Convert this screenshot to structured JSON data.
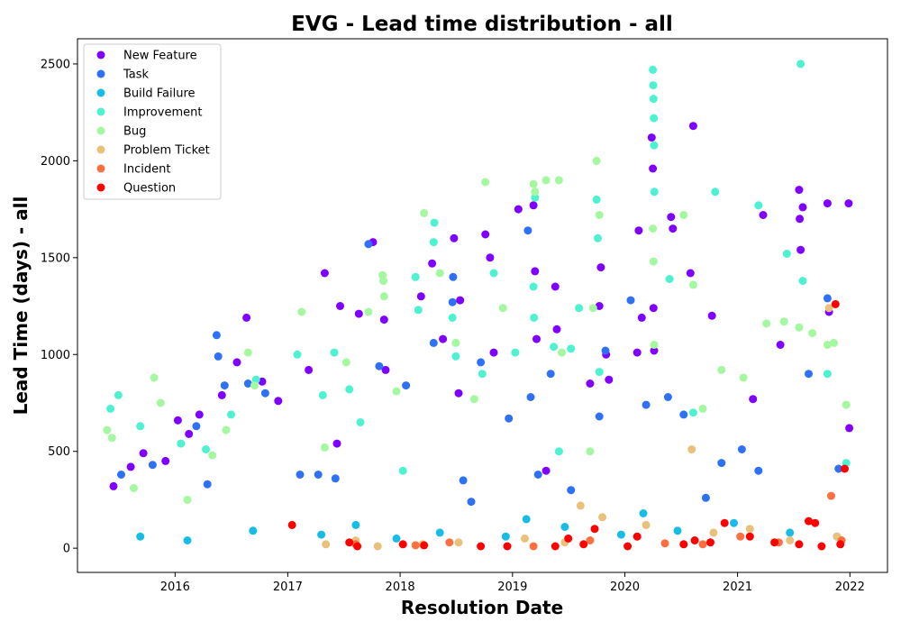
{
  "chart_data": {
    "type": "scatter",
    "title": "EVG - Lead time distribution - all",
    "xlabel": "Resolution Date",
    "ylabel": "Lead Time (days) - all",
    "xlim": [
      "2015-02-18",
      "2022-05-03"
    ],
    "ylim": [
      -125,
      2630
    ],
    "x_ticks": [
      "2016",
      "2017",
      "2018",
      "2019",
      "2020",
      "2021",
      "2022"
    ],
    "y_ticks": [
      0,
      500,
      1000,
      1500,
      2000,
      2500
    ],
    "grid": false,
    "legend_position": "upper-left",
    "series": [
      {
        "name": "New Feature",
        "color": "#8000ff",
        "points": [
          [
            "2015-06-15",
            320
          ],
          [
            "2015-08-10",
            420
          ],
          [
            "2015-09-20",
            490
          ],
          [
            "2015-12-01",
            450
          ],
          [
            "2016-01-10",
            660
          ],
          [
            "2016-02-15",
            590
          ],
          [
            "2016-03-20",
            690
          ],
          [
            "2016-06-01",
            790
          ],
          [
            "2016-07-20",
            960
          ],
          [
            "2016-08-20",
            1190
          ],
          [
            "2016-10-10",
            860
          ],
          [
            "2016-12-01",
            760
          ],
          [
            "2017-03-10",
            920
          ],
          [
            "2017-05-01",
            1420
          ],
          [
            "2017-06-20",
            1250
          ],
          [
            "2017-08-20",
            1210
          ],
          [
            "2017-10-05",
            1580
          ],
          [
            "2017-11-10",
            1180
          ],
          [
            "2017-11-15",
            920
          ],
          [
            "2018-03-10",
            1300
          ],
          [
            "2018-04-15",
            1470
          ],
          [
            "2018-05-20",
            1080
          ],
          [
            "2018-06-25",
            1600
          ],
          [
            "2018-07-15",
            1280
          ],
          [
            "2018-10-05",
            1620
          ],
          [
            "2018-10-20",
            1500
          ],
          [
            "2018-11-01",
            1010
          ],
          [
            "2019-01-20",
            1750
          ],
          [
            "2019-03-10",
            1770
          ],
          [
            "2019-03-15",
            1430
          ],
          [
            "2019-03-20",
            1080
          ],
          [
            "2019-05-20",
            1350
          ],
          [
            "2019-05-25",
            1130
          ],
          [
            "2019-09-10",
            850
          ],
          [
            "2019-10-10",
            1250
          ],
          [
            "2019-10-15",
            1450
          ],
          [
            "2019-11-01",
            1000
          ],
          [
            "2019-11-10",
            870
          ],
          [
            "2020-02-15",
            1640
          ],
          [
            "2020-02-25",
            1190
          ],
          [
            "2020-03-28",
            2120
          ],
          [
            "2020-04-01",
            1960
          ],
          [
            "2020-04-03",
            1240
          ],
          [
            "2020-04-05",
            1020
          ],
          [
            "2020-05-30",
            1710
          ],
          [
            "2020-06-05",
            1650
          ],
          [
            "2020-08-01",
            1420
          ],
          [
            "2020-08-10",
            2180
          ],
          [
            "2020-10-10",
            1200
          ],
          [
            "2021-02-20",
            770
          ],
          [
            "2021-03-25",
            1720
          ],
          [
            "2021-05-20",
            1050
          ],
          [
            "2021-07-20",
            1850
          ],
          [
            "2021-07-22",
            1700
          ],
          [
            "2021-07-25",
            1540
          ],
          [
            "2021-08-01",
            1760
          ],
          [
            "2021-10-20",
            1780
          ],
          [
            "2021-10-25",
            1220
          ],
          [
            "2021-12-28",
            1780
          ],
          [
            "2021-12-30",
            620
          ],
          [
            "2020-02-10",
            1010
          ],
          [
            "2018-07-10",
            800
          ],
          [
            "2019-04-20",
            400
          ],
          [
            "2017-06-10",
            540
          ]
        ]
      },
      {
        "name": "Task",
        "color": "#2f71f6",
        "points": [
          [
            "2015-07-10",
            380
          ],
          [
            "2015-10-20",
            430
          ],
          [
            "2016-03-10",
            630
          ],
          [
            "2016-04-15",
            330
          ],
          [
            "2016-05-15",
            1100
          ],
          [
            "2016-05-20",
            990
          ],
          [
            "2016-06-10",
            840
          ],
          [
            "2016-08-25",
            850
          ],
          [
            "2016-10-20",
            800
          ],
          [
            "2017-02-10",
            380
          ],
          [
            "2017-04-10",
            380
          ],
          [
            "2017-06-05",
            360
          ],
          [
            "2017-09-20",
            1570
          ],
          [
            "2017-10-25",
            940
          ],
          [
            "2018-01-20",
            840
          ],
          [
            "2018-04-20",
            1060
          ],
          [
            "2018-06-20",
            1270
          ],
          [
            "2018-06-22",
            1400
          ],
          [
            "2018-07-25",
            350
          ],
          [
            "2018-09-20",
            960
          ],
          [
            "2018-12-20",
            670
          ],
          [
            "2019-02-20",
            1640
          ],
          [
            "2019-03-01",
            780
          ],
          [
            "2019-03-25",
            380
          ],
          [
            "2019-05-05",
            900
          ],
          [
            "2019-10-10",
            680
          ],
          [
            "2019-10-30",
            1020
          ],
          [
            "2020-01-20",
            1280
          ],
          [
            "2020-03-10",
            740
          ],
          [
            "2020-05-20",
            780
          ],
          [
            "2020-07-10",
            690
          ],
          [
            "2020-11-10",
            440
          ],
          [
            "2021-01-15",
            510
          ],
          [
            "2021-03-10",
            400
          ],
          [
            "2021-08-20",
            900
          ],
          [
            "2021-10-20",
            1290
          ],
          [
            "2021-11-25",
            410
          ],
          [
            "2018-08-20",
            240
          ],
          [
            "2019-07-10",
            300
          ],
          [
            "2020-09-20",
            260
          ]
        ]
      },
      {
        "name": "Build Failure",
        "color": "#17bde6",
        "points": [
          [
            "2015-09-10",
            60
          ],
          [
            "2016-02-10",
            40
          ],
          [
            "2016-09-10",
            90
          ],
          [
            "2017-04-20",
            70
          ],
          [
            "2017-12-20",
            50
          ],
          [
            "2018-05-10",
            80
          ],
          [
            "2018-12-10",
            60
          ],
          [
            "2019-06-20",
            110
          ],
          [
            "2019-12-20",
            70
          ],
          [
            "2020-06-20",
            90
          ],
          [
            "2020-12-20",
            130
          ],
          [
            "2021-06-20",
            80
          ],
          [
            "2021-11-20",
            60
          ],
          [
            "2019-02-15",
            150
          ],
          [
            "2020-03-01",
            180
          ],
          [
            "2017-08-10",
            120
          ]
        ]
      },
      {
        "name": "Improvement",
        "color": "#4df2d0",
        "points": [
          [
            "2015-06-05",
            720
          ],
          [
            "2015-07-01",
            790
          ],
          [
            "2015-09-10",
            630
          ],
          [
            "2016-01-20",
            540
          ],
          [
            "2016-04-10",
            510
          ],
          [
            "2016-07-01",
            690
          ],
          [
            "2016-09-20",
            870
          ],
          [
            "2017-02-01",
            1000
          ],
          [
            "2017-04-25",
            790
          ],
          [
            "2017-06-01",
            1010
          ],
          [
            "2017-07-20",
            820
          ],
          [
            "2017-08-25",
            650
          ],
          [
            "2018-02-20",
            1400
          ],
          [
            "2018-03-01",
            1230
          ],
          [
            "2018-04-20",
            1580
          ],
          [
            "2018-04-22",
            1680
          ],
          [
            "2018-06-20",
            1190
          ],
          [
            "2018-07-01",
            990
          ],
          [
            "2018-09-25",
            900
          ],
          [
            "2018-11-01",
            1420
          ],
          [
            "2019-01-10",
            1010
          ],
          [
            "2019-03-10",
            1350
          ],
          [
            "2019-03-12",
            1190
          ],
          [
            "2019-03-15",
            1810
          ],
          [
            "2019-05-15",
            1040
          ],
          [
            "2019-07-10",
            1030
          ],
          [
            "2019-08-05",
            1240
          ],
          [
            "2019-10-01",
            1800
          ],
          [
            "2019-10-05",
            1600
          ],
          [
            "2019-10-10",
            910
          ],
          [
            "2020-04-01",
            2470
          ],
          [
            "2020-04-02",
            2390
          ],
          [
            "2020-04-03",
            2320
          ],
          [
            "2020-04-04",
            2220
          ],
          [
            "2020-04-05",
            2080
          ],
          [
            "2020-04-06",
            1840
          ],
          [
            "2020-05-25",
            1390
          ],
          [
            "2020-10-20",
            1840
          ],
          [
            "2021-03-10",
            1770
          ],
          [
            "2021-06-10",
            1520
          ],
          [
            "2021-07-25",
            2500
          ],
          [
            "2021-08-01",
            1380
          ],
          [
            "2021-10-20",
            900
          ],
          [
            "2021-12-20",
            440
          ],
          [
            "2020-08-10",
            700
          ],
          [
            "2019-06-01",
            500
          ],
          [
            "2018-01-10",
            400
          ]
        ]
      },
      {
        "name": "Bug",
        "color": "#a4f89f",
        "points": [
          [
            "2015-05-25",
            610
          ],
          [
            "2015-06-10",
            570
          ],
          [
            "2015-10-25",
            880
          ],
          [
            "2015-11-15",
            750
          ],
          [
            "2016-05-01",
            480
          ],
          [
            "2016-06-15",
            610
          ],
          [
            "2016-08-25",
            1010
          ],
          [
            "2016-09-15",
            840
          ],
          [
            "2017-02-15",
            1220
          ],
          [
            "2017-05-01",
            520
          ],
          [
            "2017-07-10",
            960
          ],
          [
            "2017-09-20",
            1220
          ],
          [
            "2017-11-05",
            1410
          ],
          [
            "2017-11-08",
            1380
          ],
          [
            "2017-11-10",
            1300
          ],
          [
            "2017-12-20",
            810
          ],
          [
            "2018-03-20",
            1730
          ],
          [
            "2018-05-10",
            1420
          ],
          [
            "2018-07-01",
            1060
          ],
          [
            "2018-08-30",
            770
          ],
          [
            "2018-10-05",
            1890
          ],
          [
            "2018-12-01",
            1240
          ],
          [
            "2019-03-10",
            1880
          ],
          [
            "2019-03-15",
            1840
          ],
          [
            "2019-04-20",
            1900
          ],
          [
            "2019-06-01",
            1900
          ],
          [
            "2019-06-10",
            1010
          ],
          [
            "2019-09-20",
            1240
          ],
          [
            "2019-10-01",
            2000
          ],
          [
            "2019-10-10",
            1720
          ],
          [
            "2020-04-01",
            1650
          ],
          [
            "2020-04-03",
            1480
          ],
          [
            "2020-04-05",
            1050
          ],
          [
            "2020-07-10",
            1720
          ],
          [
            "2020-08-10",
            1360
          ],
          [
            "2020-11-10",
            920
          ],
          [
            "2021-01-20",
            880
          ],
          [
            "2021-04-05",
            1160
          ],
          [
            "2021-06-01",
            1170
          ],
          [
            "2021-07-20",
            1140
          ],
          [
            "2021-09-01",
            1110
          ],
          [
            "2021-10-20",
            1050
          ],
          [
            "2021-11-10",
            1060
          ],
          [
            "2021-12-20",
            740
          ],
          [
            "2015-08-20",
            310
          ],
          [
            "2016-02-10",
            250
          ],
          [
            "2019-09-10",
            500
          ],
          [
            "2020-09-10",
            720
          ]
        ]
      },
      {
        "name": "Problem Ticket",
        "color": "#e8c27a",
        "points": [
          [
            "2017-05-05",
            20
          ],
          [
            "2017-08-10",
            40
          ],
          [
            "2017-10-20",
            10
          ],
          [
            "2018-03-15",
            20
          ],
          [
            "2018-07-10",
            30
          ],
          [
            "2019-02-10",
            50
          ],
          [
            "2019-06-20",
            30
          ],
          [
            "2019-10-20",
            160
          ],
          [
            "2020-03-10",
            120
          ],
          [
            "2020-08-05",
            510
          ],
          [
            "2020-10-15",
            80
          ],
          [
            "2021-02-10",
            100
          ],
          [
            "2021-06-20",
            40
          ],
          [
            "2021-10-25",
            1240
          ],
          [
            "2021-11-20",
            60
          ],
          [
            "2019-08-10",
            220
          ]
        ]
      },
      {
        "name": "Incident",
        "color": "#fb6f40",
        "points": [
          [
            "2017-08-10",
            20
          ],
          [
            "2018-02-20",
            15
          ],
          [
            "2018-06-10",
            30
          ],
          [
            "2019-03-10",
            10
          ],
          [
            "2019-09-10",
            40
          ],
          [
            "2020-05-10",
            25
          ],
          [
            "2020-09-10",
            20
          ],
          [
            "2021-01-10",
            60
          ],
          [
            "2021-05-15",
            30
          ],
          [
            "2021-11-01",
            270
          ],
          [
            "2021-12-05",
            40
          ]
        ]
      },
      {
        "name": "Question",
        "color": "#ff0000",
        "points": [
          [
            "2017-01-15",
            120
          ],
          [
            "2017-07-20",
            30
          ],
          [
            "2017-08-15",
            10
          ],
          [
            "2018-01-10",
            20
          ],
          [
            "2018-03-20",
            15
          ],
          [
            "2018-09-20",
            10
          ],
          [
            "2018-12-15",
            10
          ],
          [
            "2019-05-20",
            10
          ],
          [
            "2019-07-01",
            50
          ],
          [
            "2019-08-20",
            20
          ],
          [
            "2019-09-25",
            100
          ],
          [
            "2020-01-10",
            10
          ],
          [
            "2020-02-10",
            60
          ],
          [
            "2020-07-10",
            20
          ],
          [
            "2020-08-15",
            40
          ],
          [
            "2020-10-05",
            30
          ],
          [
            "2020-11-20",
            130
          ],
          [
            "2021-02-10",
            60
          ],
          [
            "2021-05-01",
            30
          ],
          [
            "2021-07-20",
            20
          ],
          [
            "2021-09-10",
            130
          ],
          [
            "2021-10-01",
            10
          ],
          [
            "2021-11-15",
            1260
          ],
          [
            "2021-12-15",
            410
          ],
          [
            "2021-12-01",
            20
          ],
          [
            "2021-08-20",
            140
          ]
        ]
      }
    ]
  }
}
